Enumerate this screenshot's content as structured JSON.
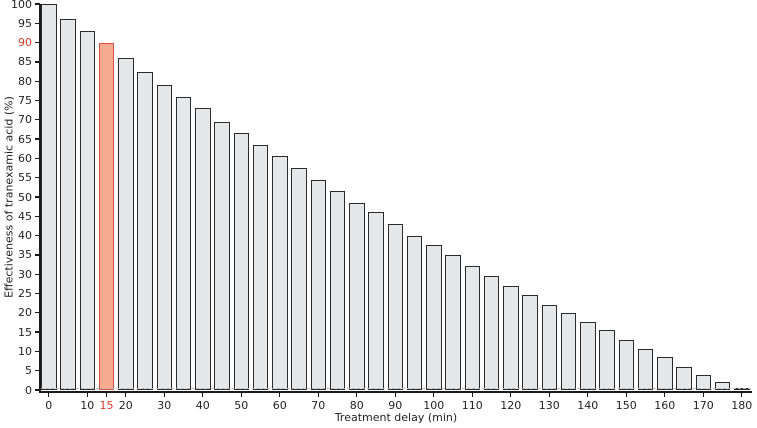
{
  "axes": {
    "x_title": "Treatment delay (min)",
    "y_title": "Effectiveness of tranexamic acid (%)"
  },
  "chart_data": {
    "type": "bar",
    "title": "",
    "xlabel": "Treatment delay (min)",
    "ylabel": "Effectiveness of tranexamic acid (%)",
    "x": [
      0,
      5,
      10,
      15,
      20,
      25,
      30,
      35,
      40,
      45,
      50,
      55,
      60,
      65,
      70,
      75,
      80,
      85,
      90,
      95,
      100,
      105,
      110,
      115,
      120,
      125,
      130,
      135,
      140,
      145,
      150,
      155,
      160,
      165,
      170,
      175,
      180
    ],
    "values": [
      100,
      96,
      93,
      90,
      86,
      82.5,
      79,
      76,
      73,
      69.5,
      66.5,
      63.5,
      60.5,
      57.5,
      54.5,
      51.5,
      48.5,
      46,
      43,
      40,
      37.5,
      35,
      32,
      29.5,
      27,
      24.5,
      22,
      20,
      17.5,
      15.5,
      13,
      10.5,
      8.5,
      6,
      4,
      2,
      0.5
    ],
    "highlight": {
      "x": 15,
      "value": 90
    },
    "ylim": [
      0,
      100
    ],
    "xlim": [
      0,
      180
    ],
    "y_ticks": [
      0,
      5,
      10,
      15,
      20,
      25,
      30,
      35,
      40,
      45,
      50,
      55,
      60,
      65,
      70,
      75,
      80,
      85,
      90,
      95,
      100
    ],
    "x_ticks": [
      0,
      10,
      15,
      20,
      30,
      40,
      50,
      60,
      70,
      80,
      90,
      100,
      110,
      120,
      130,
      140,
      150,
      160,
      170,
      180
    ],
    "red_y_tick": 90,
    "red_x_tick": 15,
    "grid": "off",
    "legend": "none",
    "zero_line_style": "dashed",
    "colors": {
      "bar_fill": "#e6e7e8",
      "bar_border": "#2b2b2b",
      "highlight_fill": "#f6ab90",
      "highlight_border": "#dd5144",
      "red_label": "#d6392c",
      "dashed_zero_line": "#b9b9b9",
      "axis": "#1a1a1a",
      "text": "#231f20"
    }
  }
}
